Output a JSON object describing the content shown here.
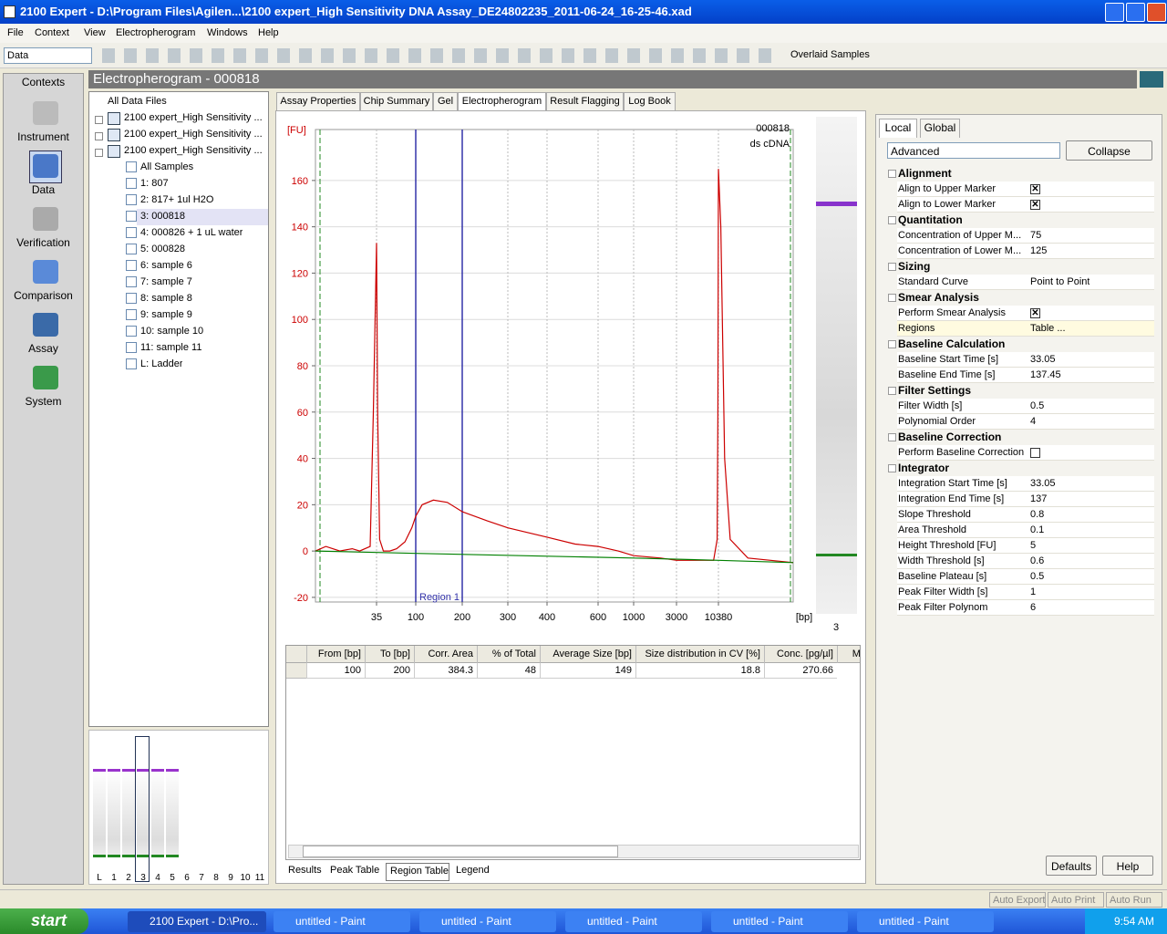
{
  "window": {
    "title": "2100 Expert - D:\\Program Files\\Agilen...\\2100 expert_High Sensitivity DNA Assay_DE24802235_2011-06-24_16-25-46.xad"
  },
  "menu": [
    "File",
    "Context",
    "View",
    "Electropherogram",
    "Windows",
    "Help"
  ],
  "toolbar": {
    "mode": "Data",
    "overlay": "Overlaid Samples"
  },
  "contexts": {
    "header": "Contexts",
    "items": [
      "Instrument",
      "Data",
      "Verification",
      "Comparison",
      "Assay",
      "System"
    ]
  },
  "view_title": "Electropherogram - 000818",
  "tree": {
    "root": "All Data Files",
    "files": [
      "2100 expert_High Sensitivity ...",
      "2100 expert_High Sensitivity ...",
      "2100 expert_High Sensitivity ..."
    ],
    "samples": [
      "All Samples",
      "1: 807",
      "2: 817+ 1ul H2O",
      "3: 000818",
      "4: 000826 + 1 uL water",
      "5: 000828",
      "6: sample 6",
      "7: sample 7",
      "8: sample 8",
      "9: sample 9",
      "10: sample 10",
      "11: sample 11",
      "L: Ladder"
    ]
  },
  "mini_gel": {
    "lanes": [
      "L",
      "1",
      "2",
      "3",
      "4",
      "5",
      "6",
      "7",
      "8",
      "9",
      "10",
      "11"
    ]
  },
  "tabs": [
    "Assay Properties",
    "Chip Summary",
    "Gel",
    "Electropherogram",
    "Result Flagging",
    "Log Book"
  ],
  "chart_data": {
    "type": "line",
    "sample": "000818",
    "assay_type": "ds cDNA",
    "ylabel": "[FU]",
    "xlabel": "[bp]",
    "lane": "3",
    "xlim": [
      20,
      15000
    ],
    "xticks": [
      35,
      100,
      200,
      300,
      400,
      600,
      1000,
      3000,
      10380
    ],
    "ylim": [
      -22,
      182
    ],
    "yticks": [
      -20,
      0,
      20,
      40,
      60,
      80,
      100,
      120,
      140,
      160
    ],
    "grid": true,
    "region": {
      "label": "Region 1",
      "from": 100,
      "to": 200,
      "color": "#3333aa"
    },
    "series": [
      {
        "color": "#cc0000",
        "x": [
          20,
          22,
          25,
          28,
          30,
          33,
          34,
          35,
          36,
          38,
          42,
          50,
          60,
          75,
          90,
          100,
          110,
          130,
          160,
          200,
          250,
          300,
          400,
          500,
          600,
          800,
          1000,
          2000,
          3000,
          6000,
          9000,
          10000,
          10200,
          10380,
          10500,
          10700,
          11000,
          12000,
          15000
        ],
        "values": [
          0,
          2,
          0,
          1,
          0,
          2,
          60,
          133,
          60,
          5,
          0,
          0,
          1,
          4,
          10,
          15,
          20,
          22,
          21,
          17,
          13,
          10,
          6,
          3,
          2,
          0,
          -2,
          -3,
          -4,
          -4,
          -4,
          5,
          60,
          165,
          140,
          40,
          5,
          -3,
          -5
        ]
      },
      {
        "color": "#008000",
        "x": [
          20,
          100,
          1000,
          10380,
          15000
        ],
        "values": [
          0,
          -1,
          -3,
          -4,
          -5
        ]
      }
    ]
  },
  "region_table": {
    "columns": [
      "From [bp]",
      "To [bp]",
      "Corr. Area",
      "% of Total",
      "Average Size [bp]",
      "Size distribution in CV [%]",
      "Conc. [pg/µl]",
      "Mo"
    ],
    "rows": [
      [
        100,
        200,
        384.3,
        48,
        149,
        18.8,
        270.66
      ]
    ]
  },
  "bottom_tabs": [
    "Results",
    "Peak Table",
    "Region Table",
    "Legend"
  ],
  "properties": {
    "tabs": [
      "Local",
      "Global"
    ],
    "mode": "Advanced",
    "collapse": "Collapse",
    "groups": [
      {
        "name": "Alignment",
        "rows": [
          [
            "Align to Upper Marker",
            true
          ],
          [
            "Align to Lower Marker",
            true
          ]
        ]
      },
      {
        "name": "Quantitation",
        "rows": [
          [
            "Concentration of Upper M...",
            75
          ],
          [
            "Concentration of Lower M...",
            125
          ]
        ]
      },
      {
        "name": "Sizing",
        "rows": [
          [
            "Standard Curve",
            "Point to Point"
          ]
        ]
      },
      {
        "name": "Smear Analysis",
        "rows": [
          [
            "Perform Smear Analysis",
            true
          ],
          [
            "Regions",
            "Table ..."
          ]
        ]
      },
      {
        "name": "Baseline Calculation",
        "rows": [
          [
            "Baseline Start Time [s]",
            33.05
          ],
          [
            "Baseline End Time [s]",
            137.45
          ]
        ]
      },
      {
        "name": "Filter Settings",
        "rows": [
          [
            "Filter Width [s]",
            0.5
          ],
          [
            "Polynomial Order",
            4
          ]
        ]
      },
      {
        "name": "Baseline Correction",
        "rows": [
          [
            "Perform Baseline Correction",
            false
          ]
        ]
      },
      {
        "name": "Integrator",
        "rows": [
          [
            "Integration Start Time [s]",
            33.05
          ],
          [
            "Integration End Time [s]",
            137
          ],
          [
            "Slope Threshold",
            0.8
          ],
          [
            "Area Threshold",
            0.1
          ],
          [
            "Height Threshold [FU]",
            5
          ],
          [
            "Width Threshold [s]",
            0.6
          ],
          [
            "Baseline Plateau [s]",
            0.5
          ],
          [
            "Peak Filter Width [s]",
            1
          ],
          [
            "Peak Filter Polynom",
            6
          ]
        ]
      }
    ],
    "buttons": [
      "Defaults",
      "Help"
    ]
  },
  "status": [
    "Auto Export",
    "Auto Print",
    "Auto Run"
  ],
  "taskbar": {
    "start": "start",
    "tasks": [
      "2100 Expert - D:\\Pro...",
      "untitled - Paint",
      "untitled - Paint",
      "untitled - Paint",
      "untitled - Paint",
      "untitled - Paint"
    ],
    "clock": "9:54 AM"
  }
}
